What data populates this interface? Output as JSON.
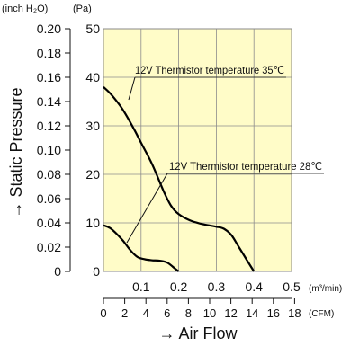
{
  "chart_data": {
    "type": "line",
    "units_label": {
      "inch": "(inch H₂O)",
      "pa": "(Pa)",
      "m3min": "(m³/min)",
      "cfm": "(CFM)"
    },
    "ylabel": "→ Static Pressure",
    "xlabel": "→ Air Flow",
    "y_inch_ticks": [
      "0",
      "0.02",
      "0.04",
      "0.06",
      "0.08",
      "0.10",
      "0.12",
      "0.14",
      "0.16",
      "0.18",
      "0.20"
    ],
    "y_pa_ticks": [
      "0",
      "10",
      "20",
      "30",
      "40",
      "50"
    ],
    "x_m3_ticks": [
      "0.1",
      "0.2",
      "0.3",
      "0.4",
      "0.5"
    ],
    "x_cfm_ticks": [
      "0",
      "2",
      "4",
      "6",
      "8",
      "10",
      "12",
      "14",
      "16",
      "18"
    ],
    "xlim": [
      0,
      0.5
    ],
    "ylim": [
      0,
      50
    ],
    "grid": true,
    "background_color": "#fffcc8",
    "series": [
      {
        "name": "12V Thermistor temperature 35℃",
        "x": [
          0,
          0.02,
          0.05,
          0.08,
          0.1,
          0.13,
          0.16,
          0.18,
          0.2,
          0.23,
          0.26,
          0.28,
          0.3,
          0.32,
          0.34,
          0.36,
          0.38,
          0.4
        ],
        "y": [
          38,
          36.5,
          33.5,
          29.5,
          26.5,
          22,
          16.5,
          13.5,
          11.8,
          10.5,
          9.8,
          9.5,
          9.2,
          8.8,
          7.5,
          5,
          2.5,
          0
        ]
      },
      {
        "name": "12V Thermistor temperature 28℃",
        "x": [
          0,
          0.02,
          0.05,
          0.07,
          0.09,
          0.11,
          0.13,
          0.15,
          0.17,
          0.19,
          0.2
        ],
        "y": [
          9.5,
          8.8,
          6.5,
          4.5,
          3,
          2.5,
          2.3,
          2.2,
          1.8,
          0.6,
          0
        ]
      }
    ]
  }
}
